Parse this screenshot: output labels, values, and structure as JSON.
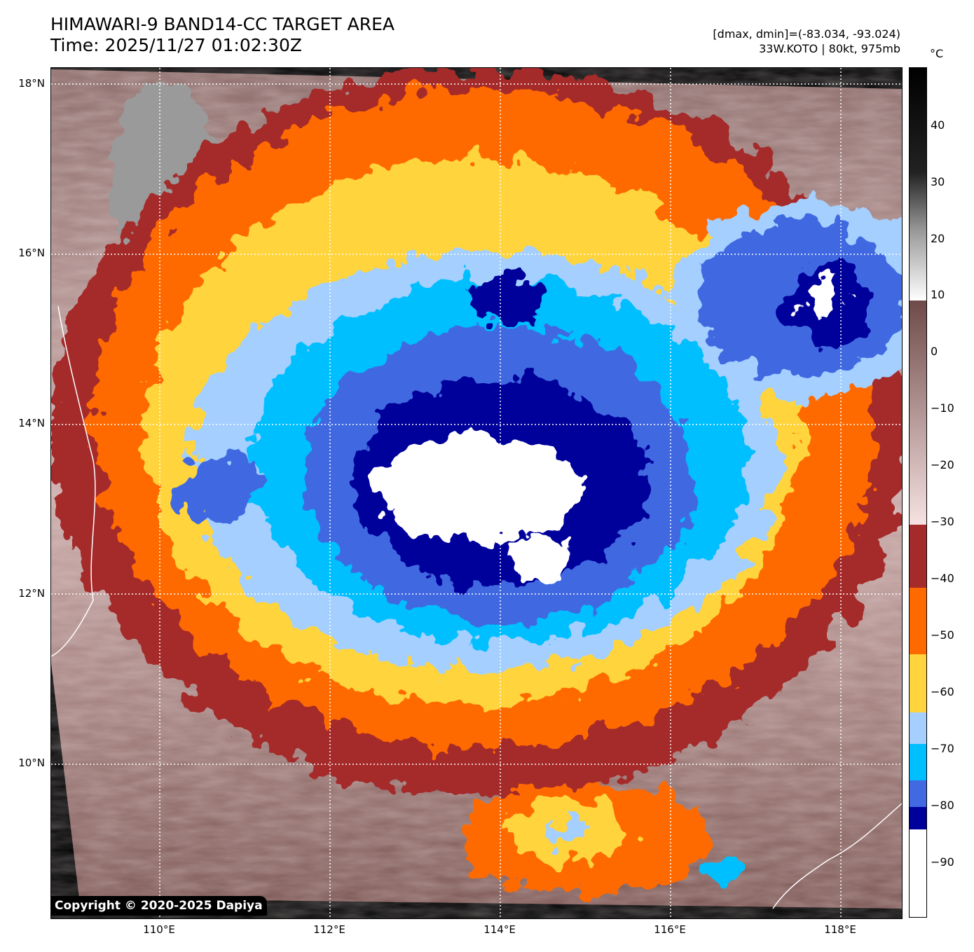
{
  "title": {
    "line1": "HIMAWARI-9 BAND14-CC TARGET AREA",
    "line2": "Time: 2025/11/27 01:02:30Z"
  },
  "info": {
    "range": "[dmax, dmin]=(-83.034, -93.024)",
    "storm": "33W.KOTO | 80kt, 975mb"
  },
  "copyright": "Copyright © 2020-2025 Dapiya",
  "axes": {
    "lat_labels": [
      "18°N",
      "16°N",
      "14°N",
      "12°N",
      "10°N"
    ],
    "lon_labels": [
      "110°E",
      "112°E",
      "114°E",
      "116°E",
      "118°E"
    ]
  },
  "colorbar": {
    "unit": "°C",
    "ticks": [
      "40",
      "30",
      "20",
      "10",
      "0",
      "−10",
      "−20",
      "−30",
      "−40",
      "−50",
      "−60",
      "−70",
      "−80",
      "−90"
    ],
    "colors": {
      "warm_top": "#000000",
      "gray_mid": "#808080",
      "white_10": "#ffffff",
      "brown": "#7a5552",
      "pink": "#f4dede",
      "dark_red": "#a52a2a",
      "orange": "#ff6a00",
      "yellow": "#ffd43c",
      "light_blue": "#a4cfff",
      "cyan": "#00bfff",
      "royal_blue": "#4169e1",
      "navy": "#00009a",
      "white_cold": "#ffffff"
    }
  }
}
